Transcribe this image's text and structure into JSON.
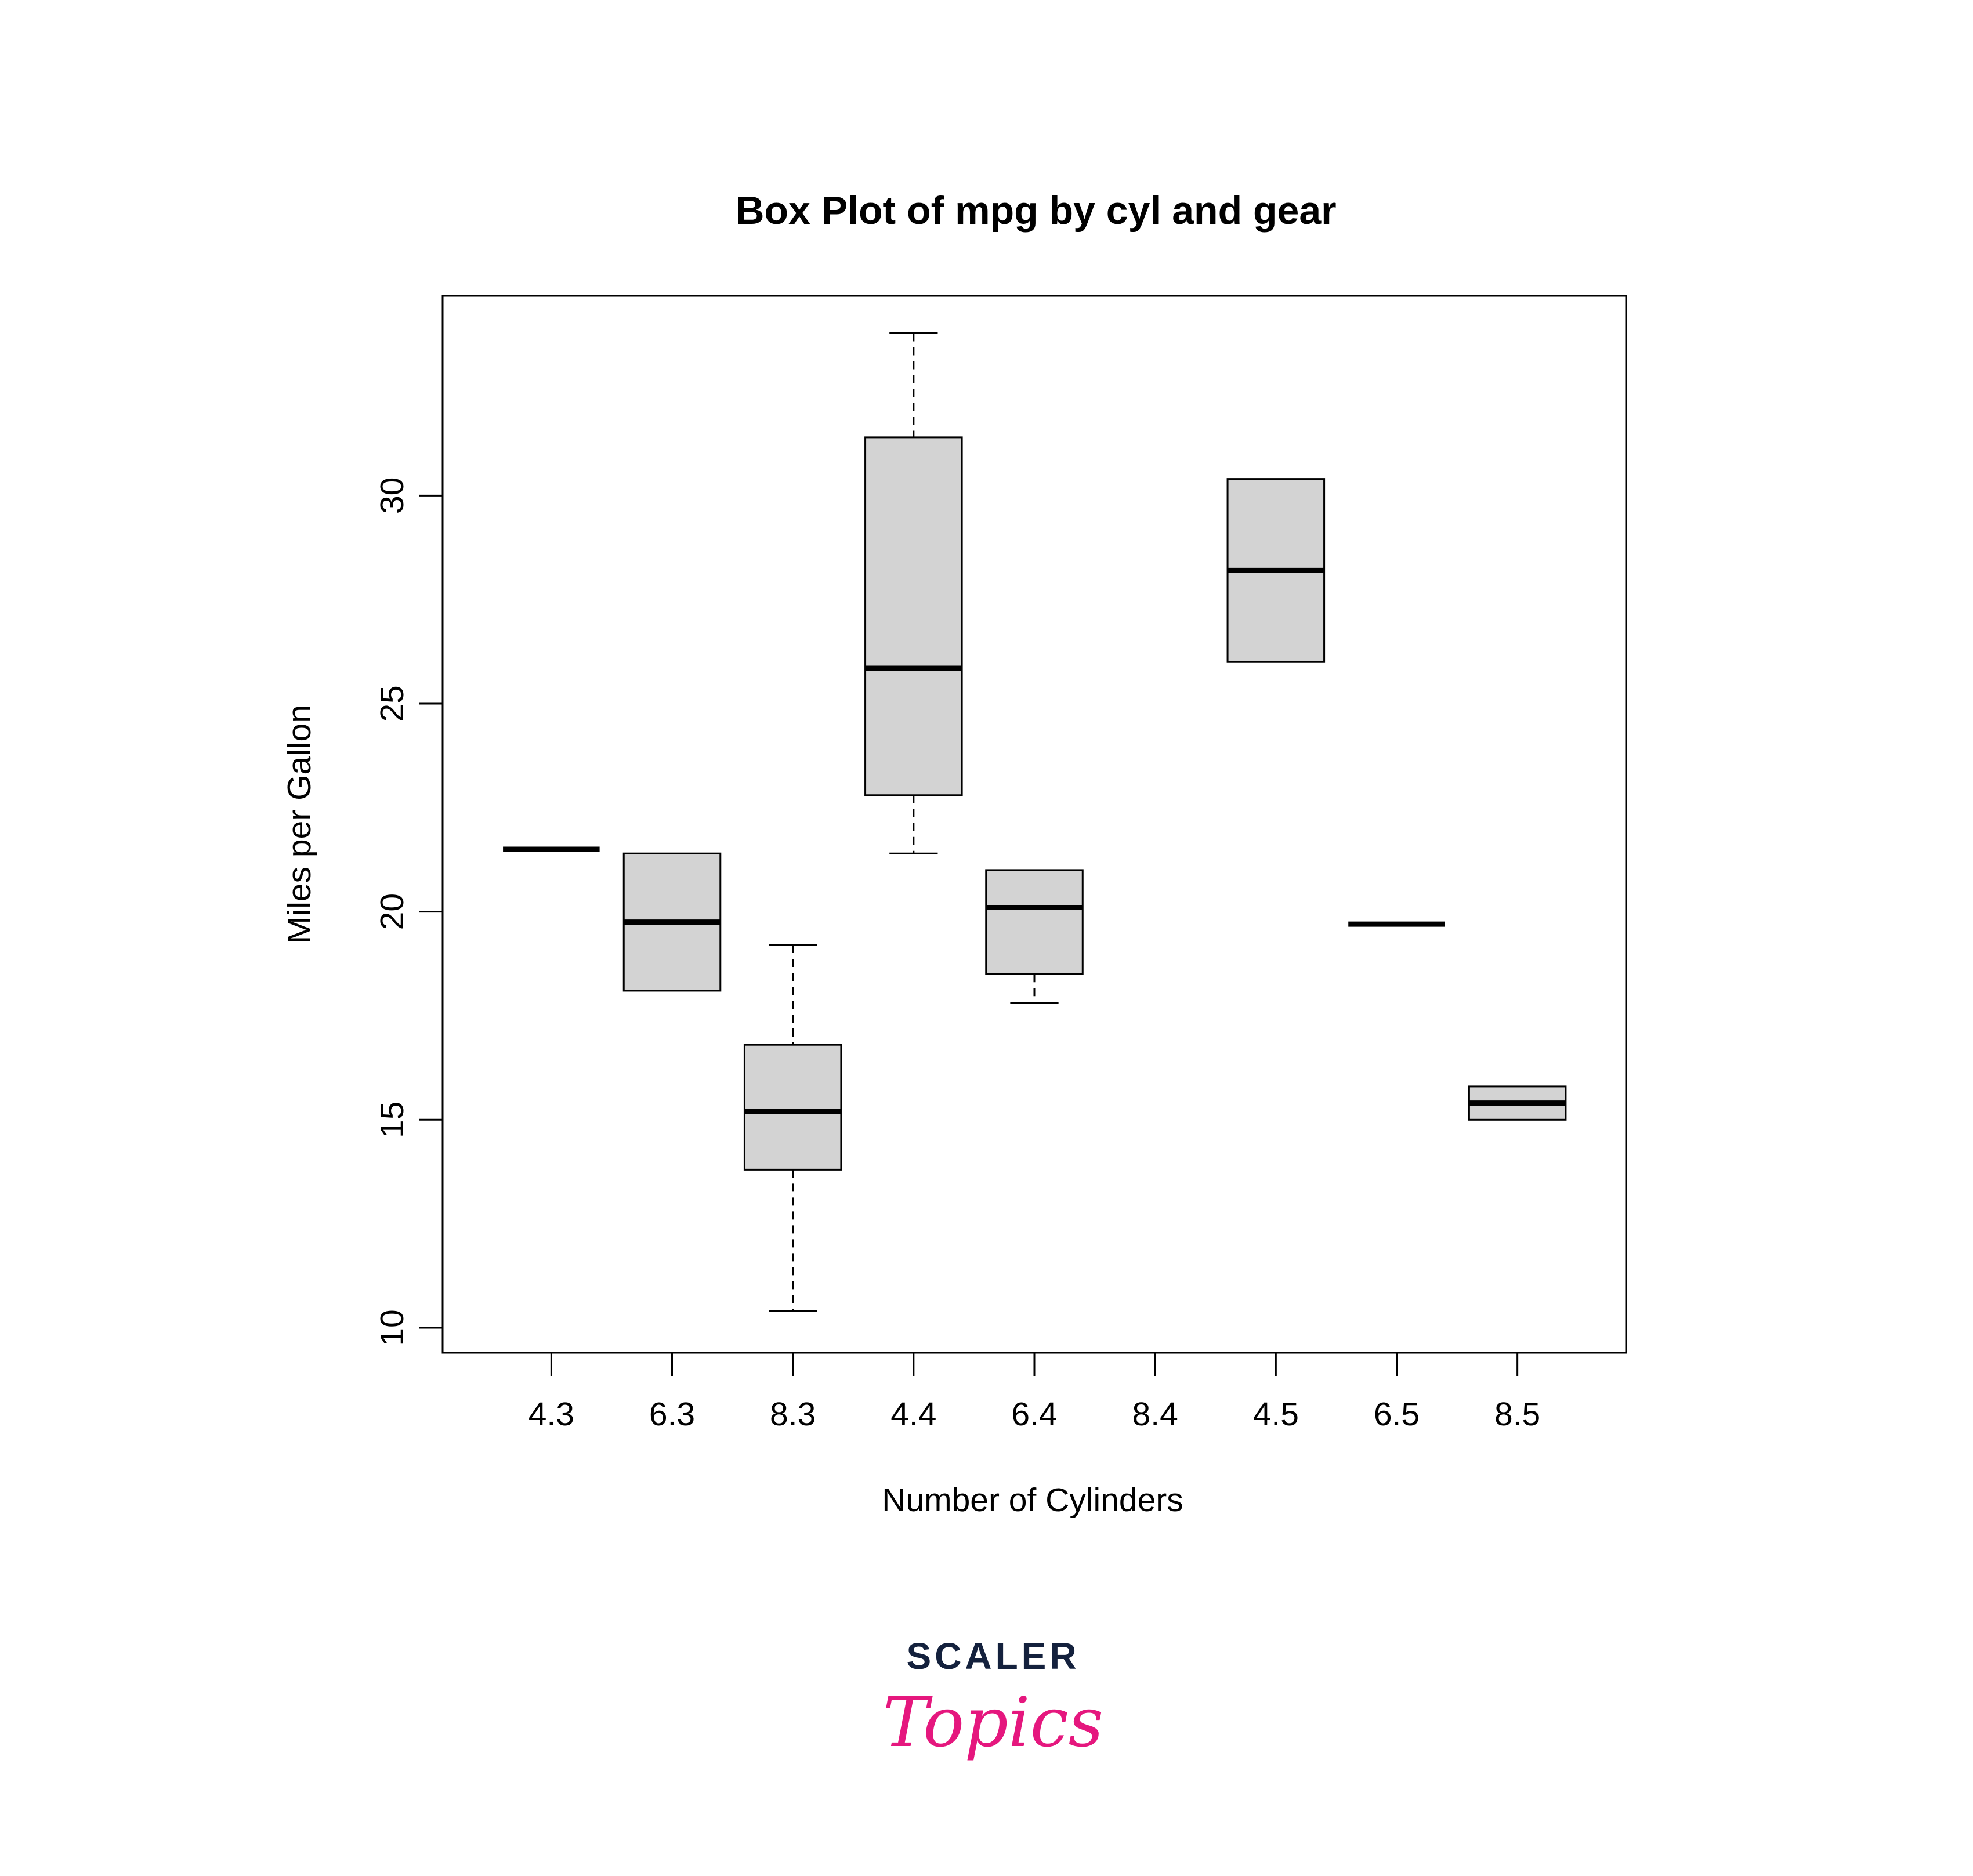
{
  "chart_data": {
    "type": "box",
    "title": "Box Plot of mpg by cyl and gear",
    "xlabel": "Number of Cylinders",
    "ylabel": "Miles per Gallon",
    "ylim": [
      9.4,
      34.8
    ],
    "yticks": [
      10,
      15,
      20,
      25,
      30
    ],
    "grid": false,
    "colors": {
      "box_fill": "#d3d3d3",
      "stroke": "#000000"
    },
    "boxes": [
      {
        "label": "4.3",
        "min": 21.5,
        "q1": 21.5,
        "median": 21.5,
        "q3": 21.5,
        "max": 21.5
      },
      {
        "label": "6.3",
        "min": 18.1,
        "q1": 18.1,
        "median": 19.75,
        "q3": 21.4,
        "max": 21.4
      },
      {
        "label": "8.3",
        "min": 10.4,
        "q1": 13.8,
        "median": 15.2,
        "q3": 16.8,
        "max": 19.2
      },
      {
        "label": "4.4",
        "min": 21.4,
        "q1": 22.8,
        "median": 25.85,
        "q3": 31.4,
        "max": 33.9
      },
      {
        "label": "6.4",
        "min": 17.8,
        "q1": 18.5,
        "median": 20.1,
        "q3": 21.0,
        "max": 21.0
      },
      {
        "label": "8.4",
        "empty": true
      },
      {
        "label": "4.5",
        "min": 26.0,
        "q1": 26.0,
        "median": 28.2,
        "q3": 30.4,
        "max": 30.4
      },
      {
        "label": "6.5",
        "min": 19.7,
        "q1": 19.7,
        "median": 19.7,
        "q3": 19.7,
        "max": 19.7
      },
      {
        "label": "8.5",
        "min": 15.0,
        "q1": 15.0,
        "median": 15.4,
        "q3": 15.8,
        "max": 15.8
      }
    ]
  },
  "logo": {
    "top": "SCALER",
    "bottom": "Topics"
  }
}
